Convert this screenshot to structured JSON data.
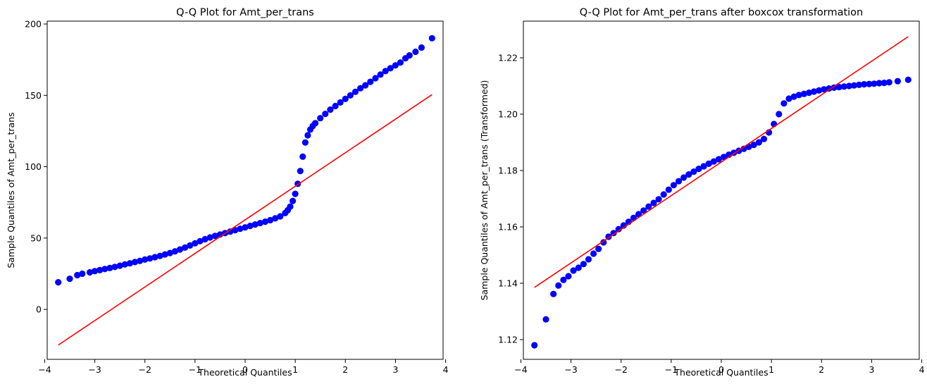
{
  "colors": {
    "points": "#0000ff",
    "line": "#ff0000"
  },
  "chart_data": [
    {
      "type": "scatter",
      "title": "Q-Q Plot for Amt_per_trans",
      "xlabel": "Theoretical Quantiles",
      "ylabel": "Sample Quantiles of Amt_per_trans",
      "xlim": [
        -3.95,
        3.95
      ],
      "ylim": [
        -35,
        202
      ],
      "xticks": [
        -4,
        -3,
        -2,
        -1,
        0,
        1,
        2,
        3,
        4
      ],
      "yticks": [
        0,
        50,
        100,
        150,
        200
      ],
      "xtick_labels": [
        "−4",
        "−3",
        "−2",
        "−1",
        "0",
        "1",
        "2",
        "3",
        "4"
      ],
      "ytick_labels": [
        "0",
        "50",
        "100",
        "150",
        "200"
      ],
      "reference_line": {
        "x": [
          -3.73,
          3.73
        ],
        "y": [
          -25,
          150.5
        ]
      },
      "series": [
        {
          "x": [
            -3.73,
            -3.5,
            -3.35,
            -3.25,
            -3.1,
            -3.0,
            -2.9,
            -2.8,
            -2.7,
            -2.6,
            -2.5,
            -2.4,
            -2.3,
            -2.2,
            -2.1,
            -2.0,
            -1.9,
            -1.8,
            -1.7,
            -1.6,
            -1.5,
            -1.4,
            -1.3,
            -1.2,
            -1.1,
            -1.0,
            -0.9,
            -0.8,
            -0.7,
            -0.6,
            -0.5,
            -0.4,
            -0.3,
            -0.2,
            -0.1,
            0.0,
            0.1,
            0.2,
            0.3,
            0.4,
            0.5,
            0.6,
            0.7,
            0.8,
            0.85,
            0.9,
            0.95,
            1.0,
            1.05,
            1.1,
            1.15,
            1.2,
            1.25,
            1.3,
            1.35,
            1.4,
            1.5,
            1.6,
            1.7,
            1.8,
            1.9,
            2.0,
            2.1,
            2.2,
            2.3,
            2.4,
            2.5,
            2.6,
            2.7,
            2.8,
            2.9,
            3.0,
            3.1,
            3.2,
            3.28,
            3.4,
            3.52,
            3.73
          ],
          "y": [
            19,
            21.5,
            24,
            25,
            26,
            26.8,
            27.5,
            28.3,
            29,
            29.8,
            30.6,
            31.5,
            32.3,
            33.2,
            34,
            34.9,
            35.7,
            36.6,
            37.5,
            38.5,
            39.5,
            40.7,
            42,
            43.3,
            44.8,
            46.3,
            47.8,
            49.2,
            50.4,
            51.5,
            52.5,
            53.5,
            54.5,
            55.5,
            56.5,
            57.5,
            58.5,
            59.5,
            60.5,
            61.5,
            62.5,
            63.8,
            65.2,
            67.5,
            69.5,
            72,
            76,
            81,
            88,
            97,
            107,
            117,
            122,
            126,
            128.5,
            130.5,
            134,
            137,
            140,
            142.5,
            145,
            147.5,
            150,
            152.5,
            155,
            157,
            159.5,
            162,
            164.5,
            167,
            169,
            171,
            173,
            176,
            178,
            180.5,
            183.5,
            190
          ]
        }
      ]
    },
    {
      "type": "scatter",
      "title": "Q-Q Plot for Amt_per_trans after boxcox transformation",
      "xlabel": "Theoretical Quantiles",
      "ylabel": "Sample Quantiles of Amt_per_trans (Transformed)",
      "xlim": [
        -3.95,
        3.95
      ],
      "ylim": [
        1.113,
        1.233
      ],
      "xticks": [
        -4,
        -3,
        -2,
        -1,
        0,
        1,
        2,
        3,
        4
      ],
      "yticks": [
        1.12,
        1.14,
        1.16,
        1.18,
        1.2,
        1.22
      ],
      "xtick_labels": [
        "−4",
        "−3",
        "−2",
        "−1",
        "0",
        "1",
        "2",
        "3",
        "4"
      ],
      "ytick_labels": [
        "1.12",
        "1.14",
        "1.16",
        "1.18",
        "1.20",
        "1.22"
      ],
      "reference_line": {
        "x": [
          -3.73,
          3.73
        ],
        "y": [
          1.1385,
          1.2275
        ]
      },
      "series": [
        {
          "x": [
            -3.73,
            -3.5,
            -3.35,
            -3.25,
            -3.15,
            -3.05,
            -2.95,
            -2.85,
            -2.75,
            -2.65,
            -2.55,
            -2.45,
            -2.35,
            -2.25,
            -2.15,
            -2.05,
            -1.95,
            -1.85,
            -1.75,
            -1.65,
            -1.55,
            -1.45,
            -1.35,
            -1.25,
            -1.15,
            -1.05,
            -0.95,
            -0.85,
            -0.75,
            -0.65,
            -0.55,
            -0.45,
            -0.35,
            -0.25,
            -0.15,
            -0.05,
            0.05,
            0.15,
            0.25,
            0.35,
            0.45,
            0.55,
            0.65,
            0.75,
            0.85,
            0.95,
            1.05,
            1.15,
            1.25,
            1.35,
            1.45,
            1.55,
            1.65,
            1.75,
            1.85,
            1.95,
            2.05,
            2.15,
            2.25,
            2.35,
            2.45,
            2.55,
            2.65,
            2.75,
            2.85,
            2.95,
            3.05,
            3.15,
            3.25,
            3.35,
            3.52,
            3.73
          ],
          "y": [
            1.118,
            1.1272,
            1.1362,
            1.1392,
            1.1412,
            1.1425,
            1.1445,
            1.1455,
            1.1468,
            1.1485,
            1.1505,
            1.1522,
            1.1545,
            1.1565,
            1.1578,
            1.1592,
            1.1605,
            1.1618,
            1.1632,
            1.1645,
            1.1658,
            1.1672,
            1.1685,
            1.1698,
            1.1715,
            1.1732,
            1.1748,
            1.1762,
            1.1775,
            1.1786,
            1.1796,
            1.1806,
            1.1815,
            1.1824,
            1.1832,
            1.184,
            1.1848,
            1.1856,
            1.1863,
            1.187,
            1.1877,
            1.1884,
            1.1891,
            1.19,
            1.1912,
            1.1935,
            1.1965,
            1.2,
            1.2038,
            1.2055,
            1.2062,
            1.2068,
            1.2072,
            1.2076,
            1.208,
            1.2084,
            1.2088,
            1.2091,
            1.2094,
            1.2096,
            1.2098,
            1.21,
            1.2102,
            1.2104,
            1.2106,
            1.2107,
            1.2108,
            1.211,
            1.2111,
            1.2113,
            1.2117,
            1.2122
          ]
        }
      ]
    }
  ]
}
